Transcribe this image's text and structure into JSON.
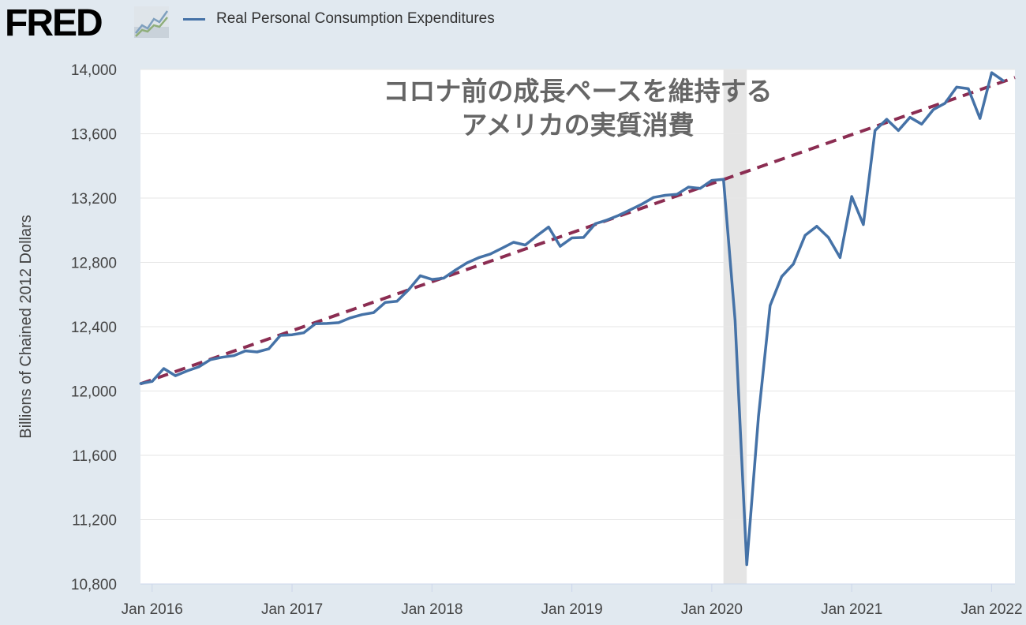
{
  "brand": {
    "logo_text": "FRED"
  },
  "legend": {
    "series_label": "Real Personal Consumption Expenditures"
  },
  "chart_data": {
    "type": "line",
    "ylabel": "Billions of Chained 2012 Dollars",
    "xlim": [
      "2015-12-01",
      "2022-03-01"
    ],
    "ylim": [
      10800,
      14000
    ],
    "y_ticks": [
      10800,
      11200,
      11600,
      12000,
      12400,
      12800,
      13200,
      13600,
      14000
    ],
    "y_tick_labels": [
      "10,800",
      "11,200",
      "11,600",
      "12,000",
      "12,400",
      "12,800",
      "13,200",
      "13,600",
      "14,000"
    ],
    "x_ticks": [
      "2016-01-01",
      "2017-01-01",
      "2018-01-01",
      "2019-01-01",
      "2020-01-01",
      "2021-01-01",
      "2022-01-01"
    ],
    "x_tick_labels": [
      "Jan 2016",
      "Jan 2017",
      "Jan 2018",
      "Jan 2019",
      "Jan 2020",
      "Jan 2021",
      "Jan 2022"
    ],
    "grid": true,
    "recession_shading": {
      "start": "2020-02-01",
      "end": "2020-04-01"
    },
    "series": [
      {
        "name": "Real Personal Consumption Expenditures",
        "color": "#4572a7",
        "start": "2015-12-01",
        "frequency": "monthly",
        "values": [
          12046,
          12060,
          12140,
          12095,
          12125,
          12150,
          12195,
          12210,
          12220,
          12250,
          12243,
          12262,
          12346,
          12350,
          12362,
          12418,
          12420,
          12425,
          12455,
          12475,
          12488,
          12551,
          12558,
          12630,
          12717,
          12694,
          12702,
          12752,
          12797,
          12829,
          12852,
          12888,
          12925,
          12908,
          12966,
          13020,
          12900,
          12952,
          12955,
          13040,
          13063,
          13092,
          13127,
          13162,
          13204,
          13217,
          13223,
          13268,
          13260,
          13310,
          13317,
          12440,
          10920,
          11840,
          12532,
          12712,
          12790,
          12968,
          13025,
          12955,
          12830,
          13210,
          13035,
          13620,
          13690,
          13620,
          13702,
          13660,
          13750,
          13790,
          13890,
          13880,
          13695,
          13980,
          13930
        ]
      }
    ],
    "trend_line": {
      "color": "#8b2d52",
      "style": "dashed",
      "points": [
        {
          "x": "2015-12-01",
          "y": 12045
        },
        {
          "x": "2022-03-01",
          "y": 13950
        }
      ]
    },
    "annotation": {
      "lines": [
        "コロナ前の成長ペースを維持する",
        "アメリカの実質消費"
      ]
    }
  }
}
